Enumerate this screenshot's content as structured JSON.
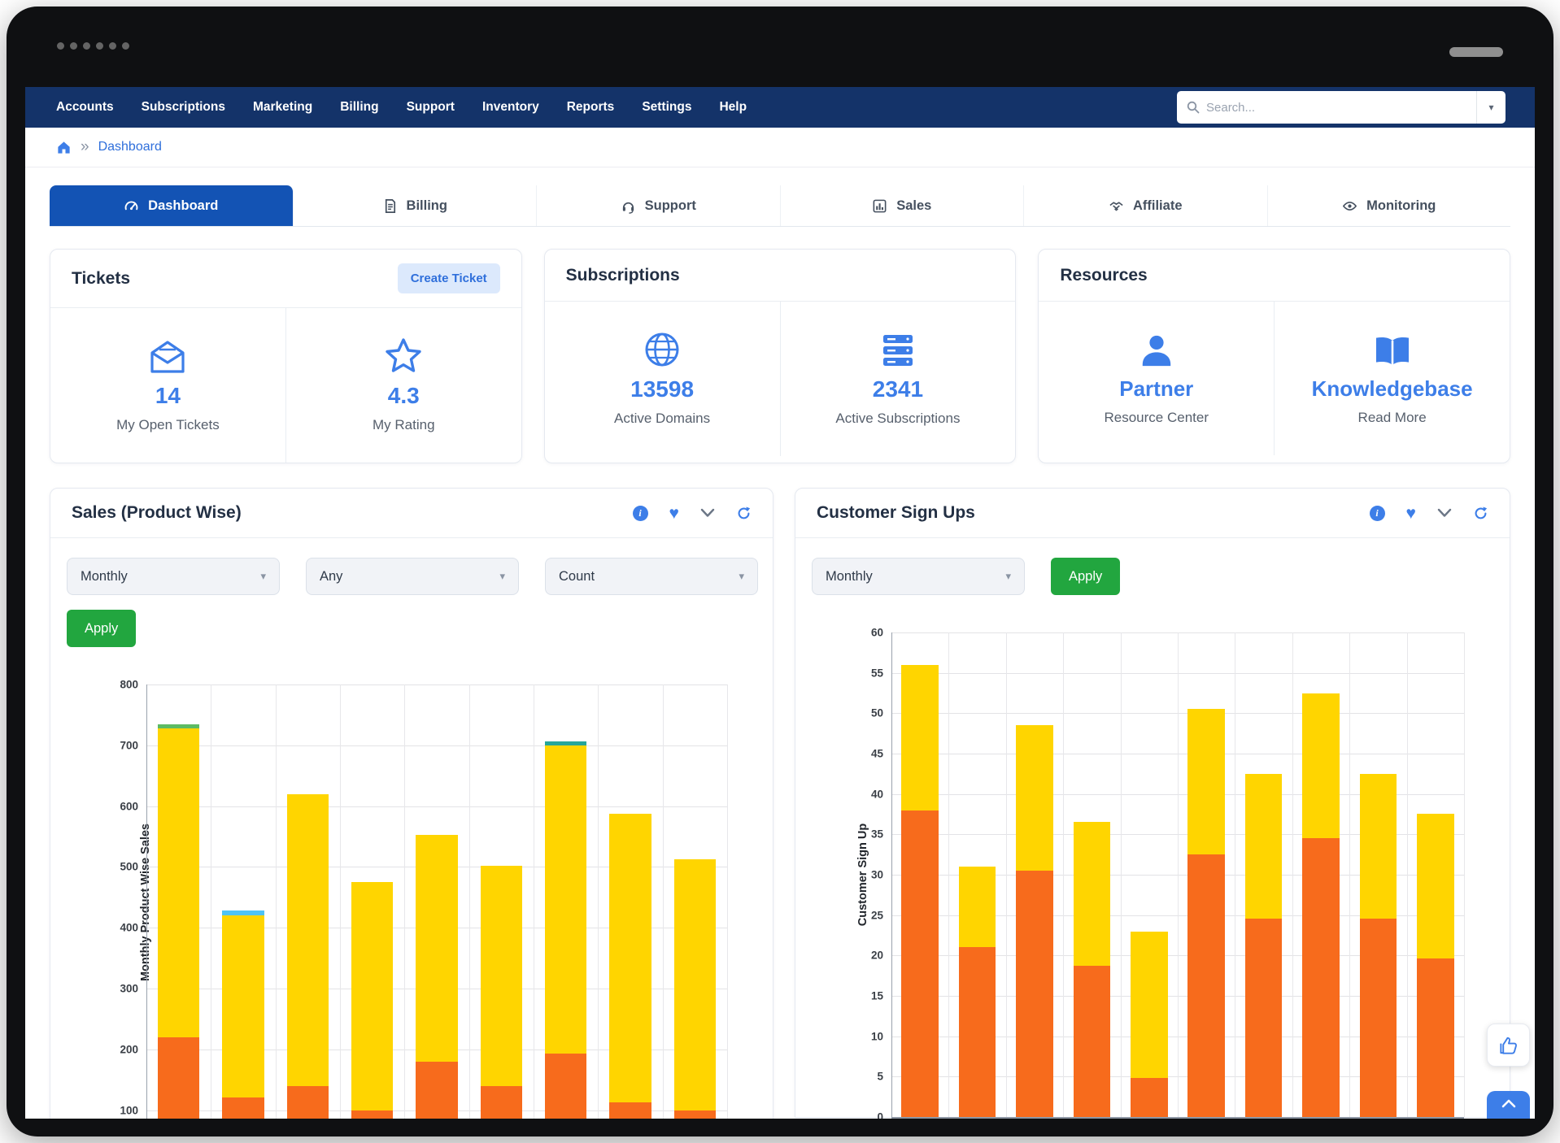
{
  "chrome": {
    "dots": 6
  },
  "colors": {
    "navbar": "#143369",
    "active_tab": "#1353B4",
    "accent_blue": "#3D7EE8",
    "link_blue": "#2F6FDB",
    "apply_green": "#22A63F",
    "bar_orange": "#F76B1C",
    "bar_yellow": "#FFD500"
  },
  "nav": {
    "items": [
      "Accounts",
      "Subscriptions",
      "Marketing",
      "Billing",
      "Support",
      "Inventory",
      "Reports",
      "Settings",
      "Help"
    ],
    "search_placeholder": "Search...",
    "search_icon": "search-icon",
    "search_dropdown_icon": "chevron-down-icon"
  },
  "breadcrumb": {
    "home_icon": "home-icon",
    "separator": "»",
    "current": "Dashboard"
  },
  "tabs": [
    {
      "label": "Dashboard",
      "icon": "speedometer-icon",
      "active": true
    },
    {
      "label": "Billing",
      "icon": "invoice-icon",
      "active": false
    },
    {
      "label": "Support",
      "icon": "headset-icon",
      "active": false
    },
    {
      "label": "Sales",
      "icon": "bar-chart-icon",
      "active": false
    },
    {
      "label": "Affiliate",
      "icon": "handshake-icon",
      "active": false
    },
    {
      "label": "Monitoring",
      "icon": "eye-icon",
      "active": false
    }
  ],
  "cards": {
    "tickets": {
      "title": "Tickets",
      "action": "Create Ticket",
      "tiles": [
        {
          "icon": "open-ticket-icon",
          "value": "14",
          "label": "My Open Tickets"
        },
        {
          "icon": "star-icon",
          "value": "4.3",
          "label": "My Rating"
        }
      ]
    },
    "subscriptions": {
      "title": "Subscriptions",
      "tiles": [
        {
          "icon": "globe-icon",
          "value": "13598",
          "label": "Active Domains"
        },
        {
          "icon": "server-icon",
          "value": "2341",
          "label": "Active Subscriptions"
        }
      ]
    },
    "resources": {
      "title": "Resources",
      "tiles": [
        {
          "icon": "user-icon",
          "value": "Partner",
          "label": "Resource Center"
        },
        {
          "icon": "book-icon",
          "value": "Knowledgebase",
          "label": "Read More"
        }
      ]
    }
  },
  "panels": {
    "icons": [
      "info-icon",
      "heart-icon",
      "chevron-down-icon",
      "refresh-icon"
    ],
    "sales": {
      "title": "Sales (Product Wise)",
      "filters": [
        "Monthly",
        "Any",
        "Count"
      ],
      "apply_label": "Apply"
    },
    "signups": {
      "title": "Customer Sign Ups",
      "filters": [
        "Monthly"
      ],
      "apply_label": "Apply"
    }
  },
  "chart_data": [
    {
      "type": "bar",
      "stacked": true,
      "title": "Sales (Product Wise)",
      "ylabel": "Monthly Product Wise Sales",
      "ylim": [
        100,
        800
      ],
      "ytick_step": 100,
      "visible_min": 85,
      "grid": true,
      "legend": "none",
      "colors": {
        "bottom": "#F76B1C",
        "top": "#FFD500"
      },
      "bars": [
        {
          "orange_to": 220,
          "total": 728,
          "cap": {
            "to": 735,
            "color": "#5DBB63"
          }
        },
        {
          "orange_to": 121,
          "total": 420,
          "cap": {
            "to": 428,
            "color": "#4FC3F7"
          }
        },
        {
          "orange_to": 140,
          "total": 620
        },
        {
          "orange_to": 100,
          "total": 475
        },
        {
          "orange_to": 180,
          "total": 553
        },
        {
          "orange_to": 140,
          "total": 502
        },
        {
          "orange_to": 193,
          "total": 700,
          "cap": {
            "to": 707,
            "color": "#26A69A"
          }
        },
        {
          "orange_to": 113,
          "total": 588
        },
        {
          "orange_to": 100,
          "total": 513
        }
      ]
    },
    {
      "type": "bar",
      "stacked": true,
      "title": "Customer Sign Ups",
      "ylabel": "Customer Sign Up",
      "ylim": [
        0,
        60
      ],
      "ytick_step": 5,
      "visible_min": 0,
      "grid": true,
      "legend": "none",
      "colors": {
        "bottom": "#F76B1C",
        "top": "#FFD500"
      },
      "bars": [
        {
          "orange_to": 38,
          "total": 56
        },
        {
          "orange_to": 21,
          "total": 31
        },
        {
          "orange_to": 30.5,
          "total": 48.5
        },
        {
          "orange_to": 18.7,
          "total": 36.5
        },
        {
          "orange_to": 4.8,
          "total": 23
        },
        {
          "orange_to": 32.5,
          "total": 50.5
        },
        {
          "orange_to": 24.6,
          "total": 42.5
        },
        {
          "orange_to": 34.5,
          "total": 52.5
        },
        {
          "orange_to": 24.6,
          "total": 42.5
        },
        {
          "orange_to": 19.6,
          "total": 37.6
        }
      ]
    }
  ]
}
